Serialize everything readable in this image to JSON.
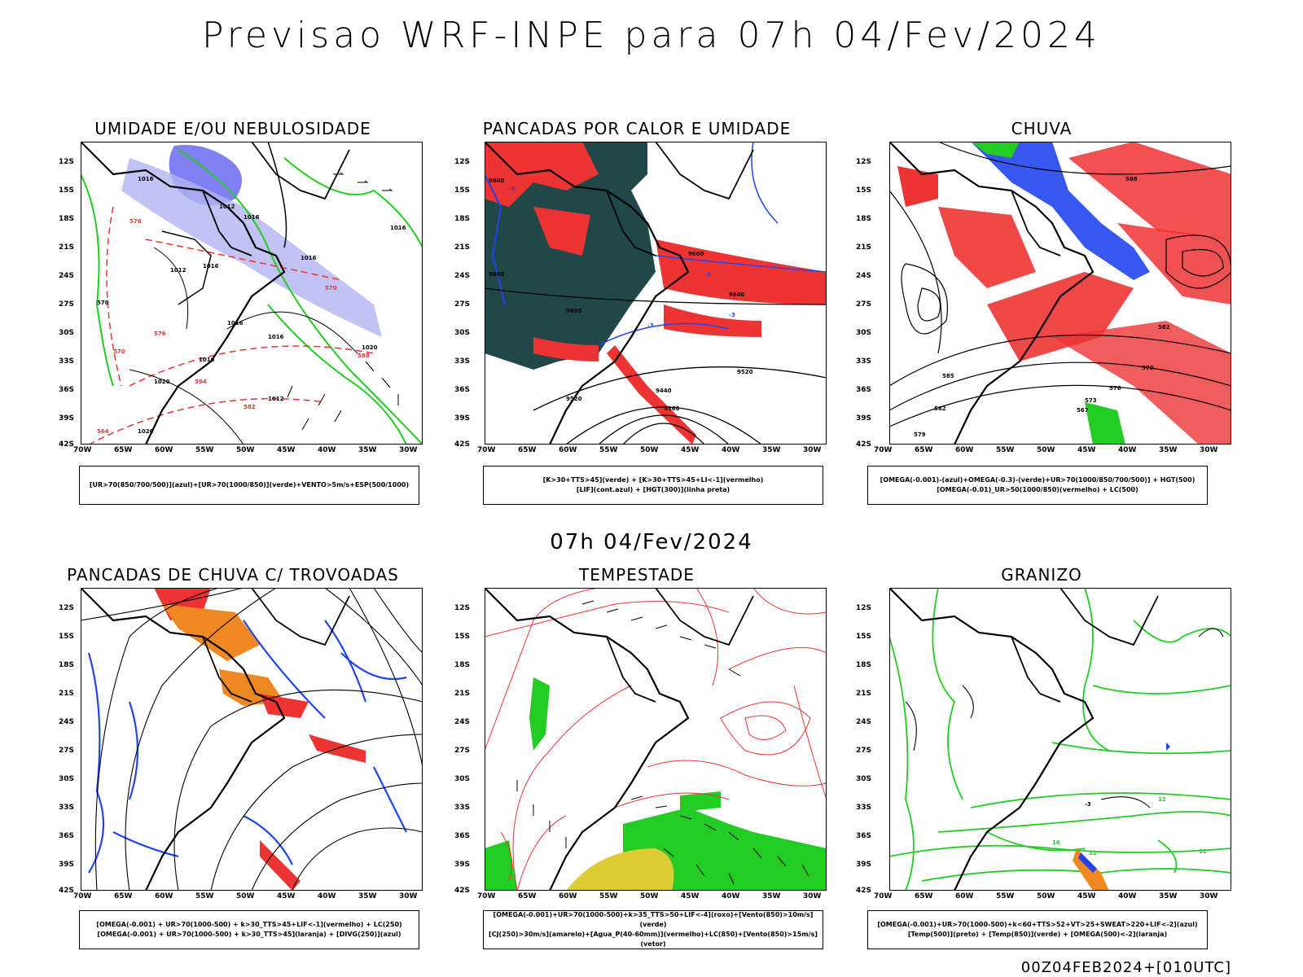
{
  "title": "Previsao WRF-INPE  para 07h 04/Fev/2024",
  "subtitle": "07h 04/Fev/2024",
  "footer": "00Z04FEB2024+[010UTC]",
  "axes": {
    "lat_labels": [
      "12S",
      "15S",
      "18S",
      "21S",
      "24S",
      "27S",
      "30S",
      "33S",
      "36S",
      "39S",
      "42S"
    ],
    "lon_labels": [
      "70W",
      "65W",
      "60W",
      "55W",
      "50W",
      "45W",
      "40W",
      "35W",
      "30W"
    ]
  },
  "colors": {
    "green": "#22cc22",
    "blue": "#2244ee",
    "red": "#ee3333",
    "light_blue": "#aab0ee",
    "dark_teal": "#204848",
    "orange": "#ee8822",
    "yellow": "#ddcc33"
  },
  "panels": [
    {
      "title": "UMIDADE E/OU NEBULOSIDADE",
      "legend": [
        "[UR>70(850/700/500)](azul)+[UR>70(1000/850)](verde)+VENTO>5m/s+ESP(500/1000)"
      ]
    },
    {
      "title": "PANCADAS POR CALOR E UMIDADE",
      "legend": [
        "[K>30+TTS>45](verde) + [K>30+TTS>45+LI<-1](vermelho)",
        "[LIF](cont.azul) + [HGT(300)](linha preta)"
      ]
    },
    {
      "title": "CHUVA",
      "legend": [
        "[OMEGA(-0.001)-(azul)+OMEGA(-0.3)-(verde)+UR>70(1000/850/700/500)] + HGT(500)",
        "[OMEGA(-0.01)_UR>50(1000/850)(vermelho) + LC(500)"
      ]
    },
    {
      "title": "PANCADAS DE CHUVA C/ TROVOADAS",
      "legend": [
        "[OMEGA(-0.001) + UR>70(1000-500) + k>30_TTS>45+LIF<-1](vermelho) + LC(250)",
        "[OMEGA(-0.001) + UR>70(1000-500) + k>30_TTS>45](laranja) + [DIVG(250)](azul)"
      ]
    },
    {
      "title": "TEMPESTADE",
      "legend": [
        "[OMEGA(-0.001)+UR>70(1000-500)+k>35_TTS>50+LIF<-4](roxo)+[Vento(850)>10m/s](verde)",
        "[CJ(250)>30m/s](amarelo)+[Agua_P(40-60mm)](vermelho)+LC(850)+[Vento(850)>15m/s](vetor)"
      ]
    },
    {
      "title": "GRANIZO",
      "legend": [
        "[OMEGA(-0.001)+UR>70(1000-500)+k<60+TTS>52+VT>25+SWEAT>220+LIF<-2](azul)",
        "[Temp(500)](preto) + [Temp(850)](verde) + [OMEGA(500)<-2](laranja)"
      ]
    }
  ],
  "map_annotations": {
    "p1": [
      "1016",
      "1012",
      "1016",
      "1016",
      "1016",
      "1012",
      "1016",
      "1016",
      "1020",
      "1016",
      "1020",
      "1016",
      "1012",
      "1020",
      "570",
      "576",
      "570",
      "576",
      "594",
      "588",
      "582",
      "570",
      "564"
    ],
    "p2": [
      "9600",
      "9600",
      "9600",
      "9600",
      "9600",
      "9520",
      "9440",
      "9360",
      "9520",
      "-3",
      "-3",
      "-3",
      "-3"
    ],
    "p3": [
      "588",
      "582",
      "579",
      "576",
      "573",
      "570",
      "567",
      "582",
      "585"
    ],
    "p6": [
      "12",
      "16",
      "12",
      "12",
      "-3"
    ]
  }
}
